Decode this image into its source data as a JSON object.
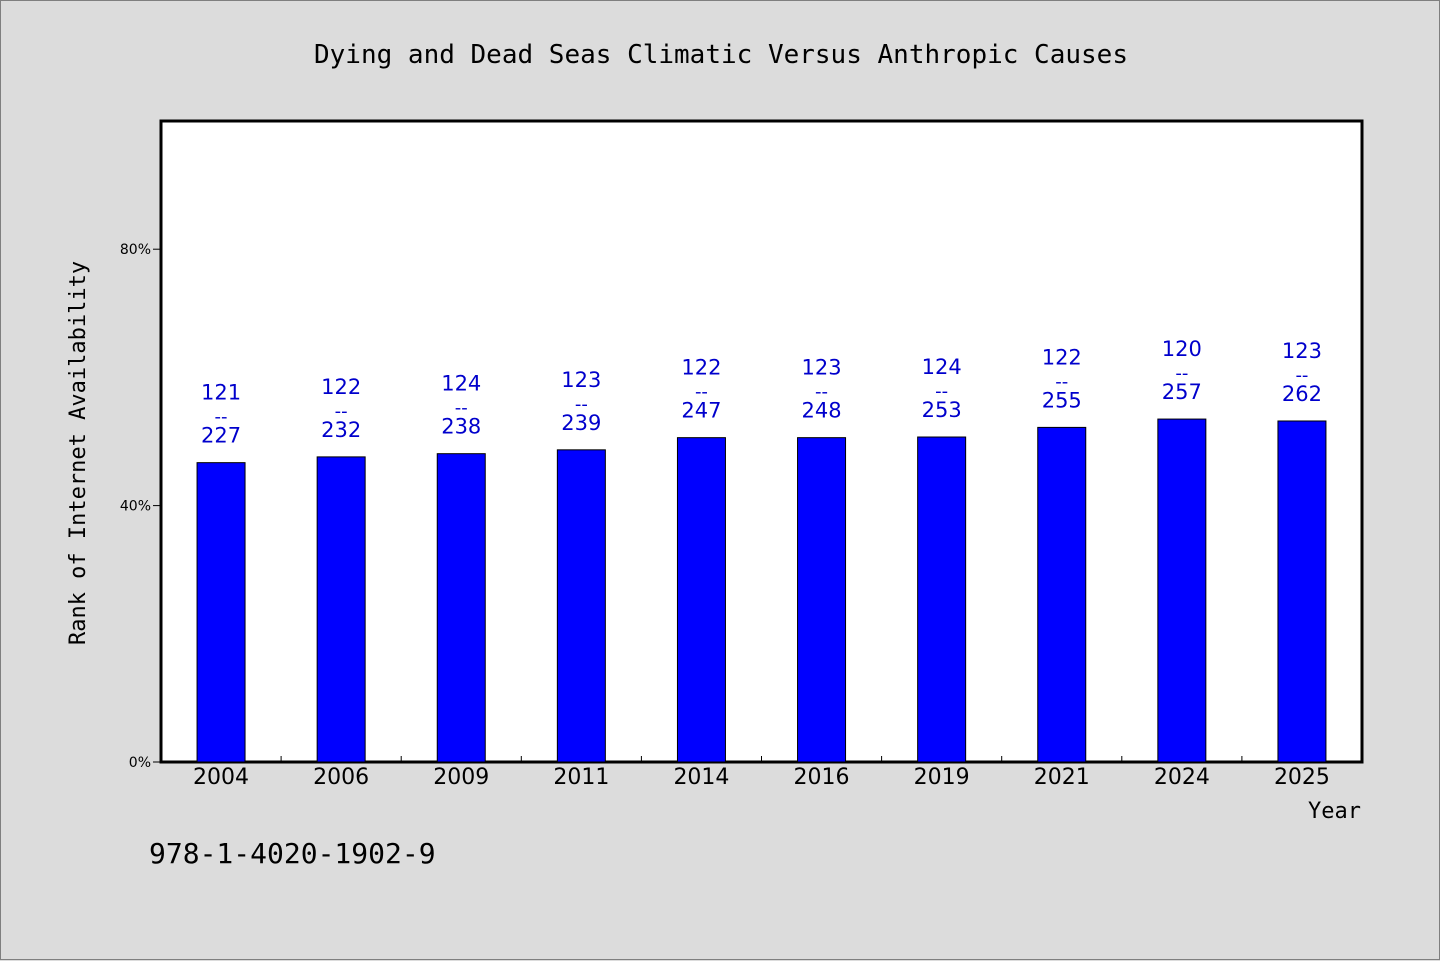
{
  "chart_data": {
    "type": "bar",
    "title": "Dying and Dead Seas Climatic Versus Anthropic Causes",
    "xlabel": "Year",
    "ylabel": "Rank of Internet Availability",
    "categories": [
      "2004",
      "2006",
      "2009",
      "2011",
      "2014",
      "2016",
      "2019",
      "2021",
      "2024",
      "2025"
    ],
    "values": [
      46.7,
      47.6,
      48.1,
      48.7,
      50.6,
      50.6,
      50.7,
      52.2,
      53.5,
      53.2
    ],
    "bar_labels": [
      {
        "top": "121",
        "sep": "--",
        "bottom": "227"
      },
      {
        "top": "122",
        "sep": "--",
        "bottom": "232"
      },
      {
        "top": "124",
        "sep": "--",
        "bottom": "238"
      },
      {
        "top": "123",
        "sep": "--",
        "bottom": "239"
      },
      {
        "top": "122",
        "sep": "--",
        "bottom": "247"
      },
      {
        "top": "123",
        "sep": "--",
        "bottom": "248"
      },
      {
        "top": "124",
        "sep": "--",
        "bottom": "253"
      },
      {
        "top": "122",
        "sep": "--",
        "bottom": "255"
      },
      {
        "top": "120",
        "sep": "--",
        "bottom": "257"
      },
      {
        "top": "123",
        "sep": "--",
        "bottom": "262"
      }
    ],
    "yticks": [
      {
        "value": 0,
        "label": "0%"
      },
      {
        "value": 40,
        "label": "40%"
      },
      {
        "value": 80,
        "label": "80%"
      }
    ],
    "ylim": [
      0,
      100
    ],
    "grid": false,
    "legend": "none",
    "colors": {
      "bar": "#0000ff",
      "label": "#0000cc",
      "plot_bg": "#ffffff",
      "page_bg": "#dcdcdc"
    }
  },
  "footer": {
    "isbn": "978-1-4020-1902-9"
  }
}
